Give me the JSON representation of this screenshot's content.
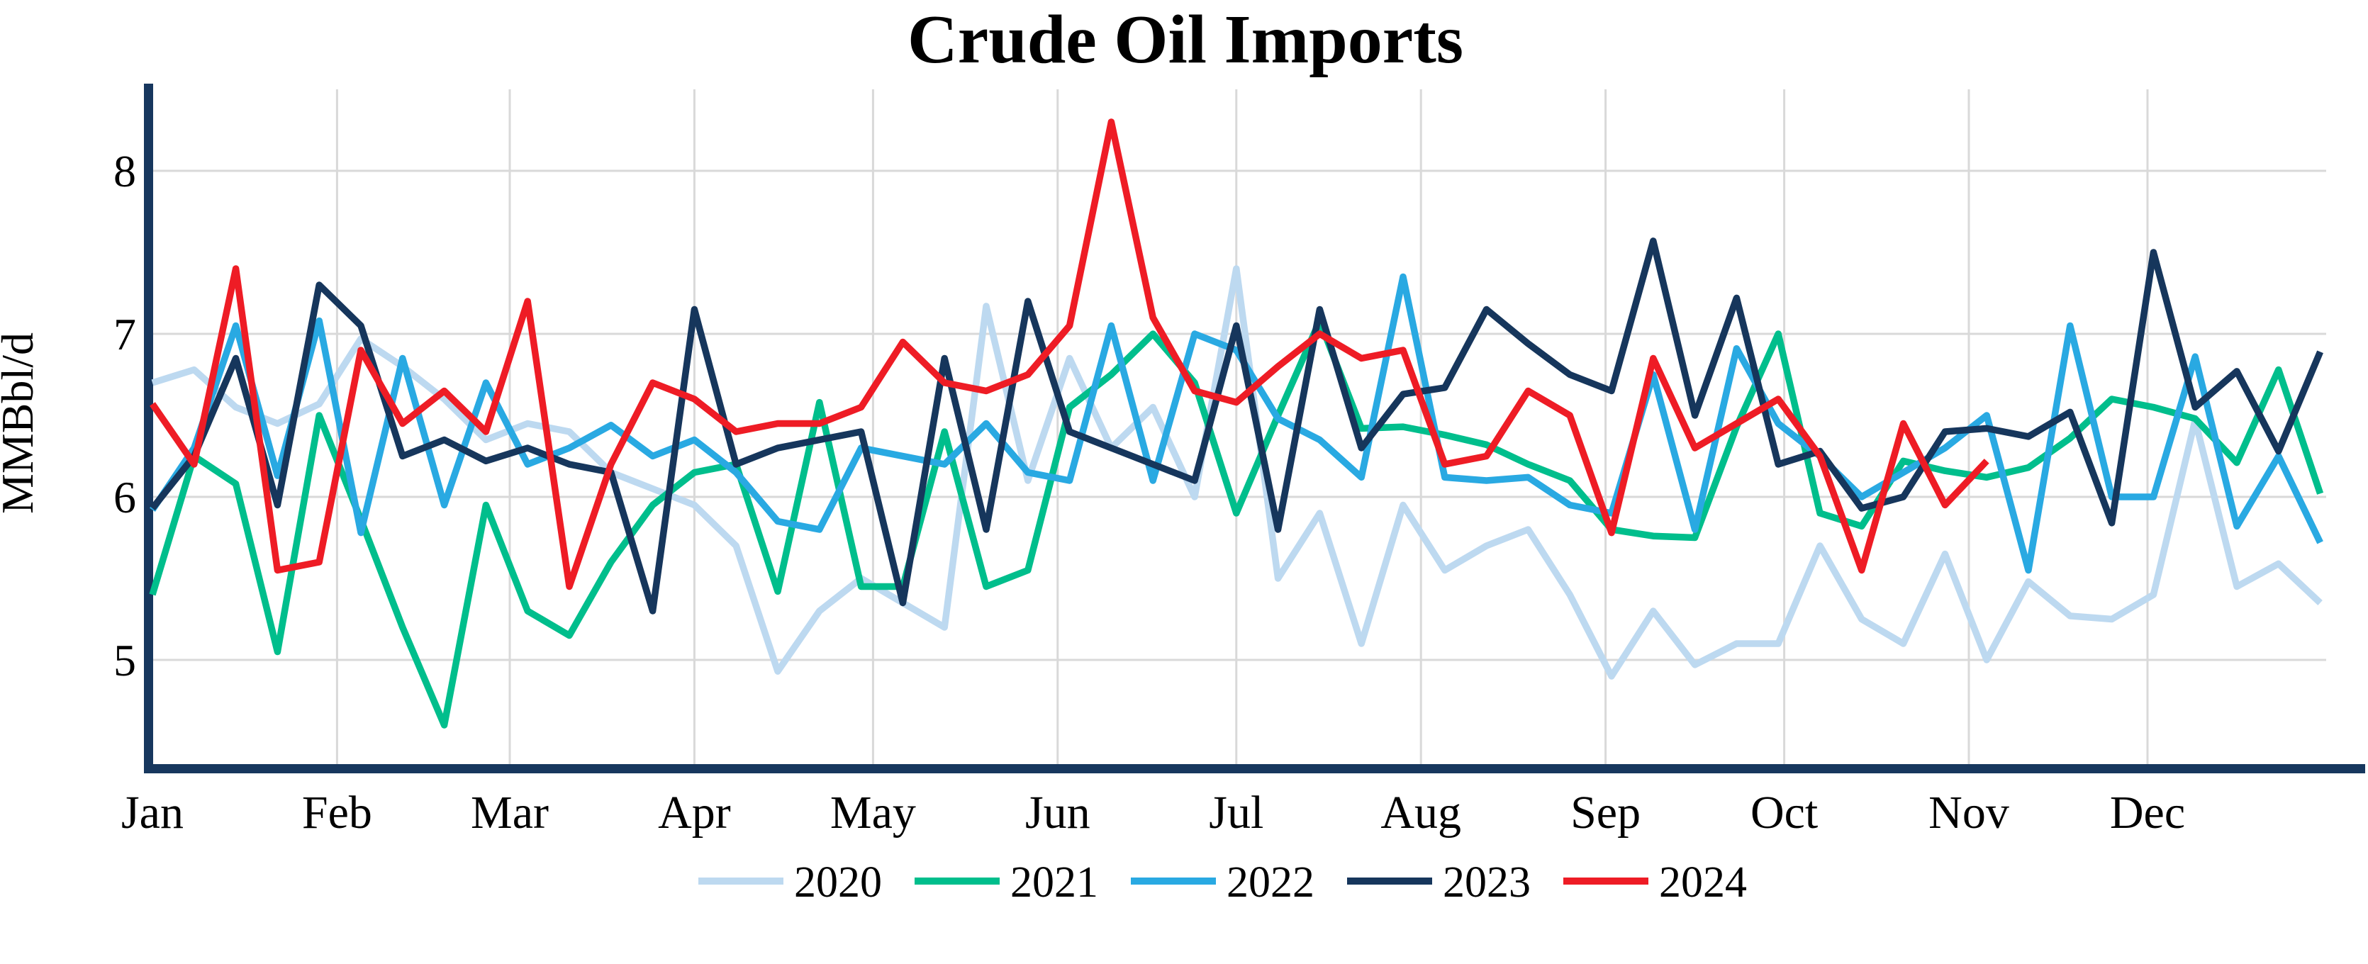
{
  "chart_data": {
    "type": "line",
    "title": "Crude Oil Imports",
    "ylabel": "MMBbl/d",
    "ylim": [
      4.33,
      8.5
    ],
    "yticks": [
      5,
      6,
      7,
      8
    ],
    "grid": true,
    "legend_position": "bottom",
    "background_color": "#FFFFFF",
    "grid_color": "#D9D9D9",
    "axis_color": "#17375E",
    "text_color": "#000000",
    "x_axis": {
      "unit": "week",
      "tick_labels": [
        "Jan",
        "Feb",
        "Mar",
        "Apr",
        "May",
        "Jun",
        "Jul",
        "Aug",
        "Sep",
        "Oct",
        "Nov",
        "Dec"
      ],
      "month_start_days": [
        0,
        31,
        60,
        91,
        121,
        152,
        182,
        213,
        244,
        274,
        305,
        335
      ],
      "days_per_year": 366
    },
    "series": [
      {
        "name": "2020",
        "color": "#BDD9F0",
        "values": [
          6.7,
          6.78,
          6.55,
          6.45,
          6.57,
          6.97,
          6.8,
          6.6,
          6.35,
          6.45,
          6.4,
          6.15,
          6.05,
          5.95,
          5.7,
          4.93,
          5.3,
          5.5,
          5.35,
          5.2,
          7.17,
          6.1,
          6.85,
          6.3,
          6.55,
          6.0,
          7.4,
          5.5,
          5.9,
          5.1,
          5.95,
          5.55,
          5.7,
          5.8,
          5.4,
          4.9,
          5.3,
          4.97,
          5.1,
          5.1,
          5.7,
          5.25,
          5.1,
          5.65,
          5.0,
          5.48,
          5.27,
          5.25,
          5.4,
          6.47,
          5.45,
          5.59,
          5.35
        ]
      },
      {
        "name": "2021",
        "color": "#00BE8C",
        "values": [
          5.4,
          6.25,
          6.08,
          5.05,
          6.5,
          5.86,
          5.2,
          4.6,
          5.95,
          5.3,
          5.15,
          5.6,
          5.95,
          6.15,
          6.2,
          5.42,
          6.58,
          5.45,
          5.45,
          6.4,
          5.45,
          5.55,
          6.55,
          6.75,
          7.0,
          6.7,
          5.9,
          6.5,
          7.08,
          6.42,
          6.43,
          6.38,
          6.32,
          6.2,
          6.1,
          5.8,
          5.76,
          5.75,
          6.43,
          7.0,
          5.9,
          5.82,
          6.22,
          6.16,
          6.12,
          6.18,
          6.36,
          6.6,
          6.55,
          6.48,
          6.21,
          6.78,
          6.02
        ]
      },
      {
        "name": "2022",
        "color": "#29A9E2",
        "values": [
          5.92,
          6.3,
          7.05,
          6.13,
          7.08,
          5.78,
          6.85,
          5.95,
          6.7,
          6.2,
          6.3,
          6.44,
          6.25,
          6.35,
          6.15,
          5.85,
          5.8,
          6.3,
          6.25,
          6.2,
          6.45,
          6.15,
          6.1,
          7.05,
          6.1,
          7.0,
          6.9,
          6.48,
          6.35,
          6.12,
          7.35,
          6.12,
          6.1,
          6.12,
          5.95,
          5.9,
          6.75,
          5.8,
          6.91,
          6.45,
          6.25,
          6.0,
          6.15,
          6.3,
          6.5,
          5.55,
          7.05,
          6.0,
          6.0,
          6.86,
          5.82,
          6.25,
          5.72
        ]
      },
      {
        "name": "2023",
        "color": "#16365C",
        "values": [
          5.93,
          6.25,
          6.85,
          5.95,
          7.3,
          7.05,
          6.25,
          6.35,
          6.22,
          6.3,
          6.2,
          6.15,
          5.3,
          7.15,
          6.2,
          6.3,
          6.35,
          6.4,
          5.35,
          6.85,
          5.8,
          7.2,
          6.4,
          6.3,
          6.2,
          6.1,
          7.05,
          5.8,
          7.15,
          6.3,
          6.63,
          6.67,
          7.15,
          6.94,
          6.75,
          6.65,
          7.57,
          6.5,
          7.22,
          6.2,
          6.28,
          5.93,
          6.0,
          6.4,
          6.42,
          6.37,
          6.52,
          5.84,
          7.5,
          6.55,
          6.77,
          6.28,
          6.89
        ]
      },
      {
        "name": "2024",
        "color": "#EE1C25",
        "values": [
          6.57,
          6.2,
          7.4,
          5.55,
          5.6,
          6.9,
          6.45,
          6.65,
          6.4,
          7.2,
          5.45,
          6.2,
          6.7,
          6.6,
          6.4,
          6.45,
          6.45,
          6.55,
          6.95,
          6.7,
          6.65,
          6.75,
          7.05,
          8.3,
          7.1,
          6.65,
          6.58,
          6.8,
          7.0,
          6.85,
          6.9,
          6.2,
          6.25,
          6.65,
          6.5,
          5.78,
          6.85,
          6.3,
          6.45,
          6.6,
          6.25,
          5.55,
          6.45,
          5.95,
          6.22
        ]
      }
    ]
  }
}
